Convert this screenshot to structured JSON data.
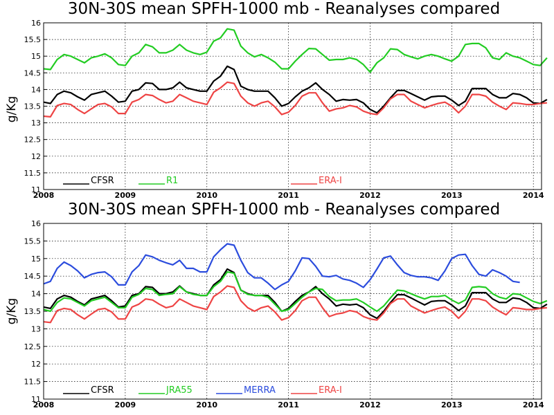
{
  "chart_data": [
    {
      "type": "line",
      "title": "30N-30S mean SPFH-1000 mb - Reanalyses compared",
      "ylabel": "g/Kg",
      "xlabel": "",
      "xlim": [
        2008,
        2014.1
      ],
      "ylim": [
        11,
        16
      ],
      "x_ticks": [
        "2008",
        "2009",
        "2010",
        "2011",
        "2012",
        "2013",
        "2014"
      ],
      "y_ticks": [
        "11",
        "11.5",
        "12",
        "12.5",
        "13",
        "13.5",
        "14",
        "14.5",
        "15",
        "15.5",
        "16"
      ],
      "grid": true,
      "legend_position": "bottom",
      "series": [
        {
          "name": "CFSR",
          "color": "#000000",
          "legend_slot": 0,
          "x_start": 2008,
          "x_step": 0.083333,
          "values": [
            13.62,
            13.58,
            13.85,
            13.95,
            13.9,
            13.78,
            13.68,
            13.85,
            13.9,
            13.95,
            13.8,
            13.62,
            13.65,
            13.95,
            14.0,
            14.2,
            14.18,
            14.0,
            14.0,
            14.05,
            14.22,
            14.05,
            14.0,
            13.95,
            13.95,
            14.25,
            14.4,
            14.7,
            14.6,
            14.1,
            14.0,
            13.95,
            13.95,
            13.95,
            13.75,
            13.5,
            13.58,
            13.78,
            13.95,
            14.05,
            14.2,
            14.0,
            13.85,
            13.65,
            13.7,
            13.68,
            13.7,
            13.6,
            13.4,
            13.3,
            13.5,
            13.75,
            13.97,
            13.97,
            13.88,
            13.78,
            13.68,
            13.78,
            13.8,
            13.8,
            13.68,
            13.52,
            13.65,
            14.03,
            14.03,
            14.03,
            13.85,
            13.75,
            13.75,
            13.88,
            13.85,
            13.75,
            13.6,
            13.58,
            13.7
          ]
        },
        {
          "name": "R1",
          "color": "#22cc22",
          "legend_slot": 1,
          "x_start": 2008,
          "x_step": 0.083333,
          "values": [
            14.62,
            14.6,
            14.9,
            15.05,
            15.0,
            14.9,
            14.8,
            14.95,
            15.0,
            15.07,
            14.95,
            14.75,
            14.72,
            15.0,
            15.1,
            15.35,
            15.28,
            15.1,
            15.1,
            15.18,
            15.35,
            15.18,
            15.1,
            15.05,
            15.12,
            15.45,
            15.55,
            15.82,
            15.78,
            15.3,
            15.1,
            14.98,
            15.05,
            14.95,
            14.82,
            14.62,
            14.62,
            14.85,
            15.05,
            15.23,
            15.22,
            15.05,
            14.88,
            14.9,
            14.9,
            14.95,
            14.9,
            14.75,
            14.52,
            14.8,
            14.95,
            15.22,
            15.2,
            15.05,
            14.98,
            14.92,
            15.0,
            15.05,
            15.0,
            14.92,
            14.85,
            15.0,
            15.35,
            15.38,
            15.38,
            15.25,
            14.95,
            14.9,
            15.1,
            15.0,
            14.95,
            14.85,
            14.75,
            14.72,
            14.95
          ]
        },
        {
          "name": "ERA-I",
          "color": "#ee4444",
          "legend_slot": 3,
          "x_start": 2008,
          "x_step": 0.083333,
          "values": [
            13.2,
            13.18,
            13.52,
            13.58,
            13.55,
            13.4,
            13.28,
            13.42,
            13.55,
            13.58,
            13.48,
            13.28,
            13.28,
            13.62,
            13.7,
            13.85,
            13.82,
            13.7,
            13.6,
            13.65,
            13.85,
            13.75,
            13.65,
            13.6,
            13.55,
            13.92,
            14.05,
            14.22,
            14.18,
            13.8,
            13.6,
            13.5,
            13.6,
            13.65,
            13.48,
            13.25,
            13.32,
            13.52,
            13.8,
            13.9,
            13.9,
            13.6,
            13.35,
            13.42,
            13.45,
            13.52,
            13.48,
            13.35,
            13.28,
            13.25,
            13.45,
            13.72,
            13.85,
            13.85,
            13.65,
            13.55,
            13.45,
            13.52,
            13.58,
            13.62,
            13.5,
            13.3,
            13.5,
            13.85,
            13.85,
            13.8,
            13.62,
            13.5,
            13.4,
            13.6,
            13.58,
            13.55,
            13.55,
            13.58,
            13.6
          ]
        }
      ]
    },
    {
      "type": "line",
      "title": "30N-30S mean SPFH-1000 mb - Reanalyses compared",
      "ylabel": "g/Kg",
      "xlabel": "",
      "xlim": [
        2008,
        2014.1
      ],
      "ylim": [
        11,
        16
      ],
      "x_ticks": [
        "2008",
        "2009",
        "2010",
        "2011",
        "2012",
        "2013",
        "2014"
      ],
      "y_ticks": [
        "11",
        "11.5",
        "12",
        "12.5",
        "13",
        "13.5",
        "14",
        "14.5",
        "15",
        "15.5",
        "16"
      ],
      "grid": true,
      "legend_position": "bottom",
      "series": [
        {
          "name": "CFSR",
          "color": "#000000",
          "legend_slot": 0,
          "x_start": 2008,
          "x_step": 0.083333,
          "values": [
            13.62,
            13.58,
            13.85,
            13.95,
            13.9,
            13.78,
            13.68,
            13.85,
            13.9,
            13.95,
            13.8,
            13.62,
            13.65,
            13.95,
            14.0,
            14.2,
            14.18,
            14.0,
            14.0,
            14.05,
            14.22,
            14.05,
            14.0,
            13.95,
            13.95,
            14.25,
            14.4,
            14.7,
            14.6,
            14.1,
            14.0,
            13.95,
            13.95,
            13.95,
            13.75,
            13.5,
            13.58,
            13.78,
            13.95,
            14.05,
            14.2,
            14.0,
            13.85,
            13.65,
            13.7,
            13.68,
            13.7,
            13.6,
            13.4,
            13.3,
            13.5,
            13.75,
            13.97,
            13.97,
            13.88,
            13.78,
            13.68,
            13.78,
            13.8,
            13.8,
            13.68,
            13.52,
            13.65,
            14.03,
            14.03,
            14.03,
            13.85,
            13.75,
            13.75,
            13.88,
            13.85,
            13.75,
            13.6,
            13.58,
            13.7
          ]
        },
        {
          "name": "JRA55",
          "color": "#22cc22",
          "legend_slot": 1,
          "x_start": 2008,
          "x_step": 0.083333,
          "values": [
            13.55,
            13.5,
            13.75,
            13.88,
            13.85,
            13.75,
            13.65,
            13.8,
            13.85,
            13.9,
            13.75,
            13.6,
            13.6,
            13.9,
            13.98,
            14.15,
            14.12,
            13.95,
            13.98,
            14.0,
            14.2,
            14.05,
            13.98,
            13.95,
            13.95,
            14.2,
            14.35,
            14.62,
            14.58,
            14.1,
            13.98,
            13.95,
            13.95,
            13.9,
            13.7,
            13.5,
            13.55,
            13.72,
            13.9,
            14.05,
            14.15,
            14.12,
            13.92,
            13.8,
            13.82,
            13.82,
            13.85,
            13.75,
            13.62,
            13.5,
            13.65,
            13.88,
            14.1,
            14.08,
            14.0,
            13.92,
            13.85,
            13.92,
            13.92,
            13.95,
            13.82,
            13.72,
            13.82,
            14.18,
            14.2,
            14.18,
            14.0,
            13.9,
            13.85,
            14.0,
            13.98,
            13.88,
            13.78,
            13.72,
            13.8
          ]
        },
        {
          "name": "MERRA",
          "color": "#2b4cdd",
          "legend_slot": 2,
          "x_start": 2008,
          "x_step": 0.083333,
          "values": [
            14.28,
            14.35,
            14.72,
            14.9,
            14.8,
            14.65,
            14.45,
            14.55,
            14.6,
            14.62,
            14.48,
            14.25,
            14.25,
            14.62,
            14.8,
            15.1,
            15.05,
            14.95,
            14.88,
            14.82,
            14.95,
            14.72,
            14.72,
            14.62,
            14.62,
            15.05,
            15.25,
            15.42,
            15.38,
            14.95,
            14.6,
            14.45,
            14.45,
            14.3,
            14.12,
            14.25,
            14.35,
            14.65,
            15.02,
            15.0,
            14.78,
            14.5,
            14.48,
            14.52,
            14.42,
            14.38,
            14.3,
            14.18,
            14.4,
            14.7,
            15.02,
            15.07,
            14.82,
            14.6,
            14.52,
            14.48,
            14.48,
            14.45,
            14.38,
            14.65,
            15.0,
            15.1,
            15.12,
            14.8,
            14.55,
            14.5,
            14.68,
            14.6,
            14.5,
            14.35,
            14.32
          ]
        },
        {
          "name": "ERA-I",
          "color": "#ee4444",
          "legend_slot": 3,
          "x_start": 2008,
          "x_step": 0.083333,
          "values": [
            13.2,
            13.18,
            13.52,
            13.58,
            13.55,
            13.4,
            13.28,
            13.42,
            13.55,
            13.58,
            13.48,
            13.28,
            13.28,
            13.62,
            13.7,
            13.85,
            13.82,
            13.7,
            13.6,
            13.65,
            13.85,
            13.75,
            13.65,
            13.6,
            13.55,
            13.92,
            14.05,
            14.22,
            14.18,
            13.8,
            13.6,
            13.5,
            13.6,
            13.65,
            13.48,
            13.25,
            13.32,
            13.52,
            13.8,
            13.9,
            13.9,
            13.6,
            13.35,
            13.42,
            13.45,
            13.52,
            13.48,
            13.35,
            13.28,
            13.25,
            13.45,
            13.72,
            13.85,
            13.85,
            13.65,
            13.55,
            13.45,
            13.52,
            13.58,
            13.62,
            13.5,
            13.3,
            13.5,
            13.85,
            13.85,
            13.8,
            13.62,
            13.5,
            13.4,
            13.6,
            13.58,
            13.55,
            13.55,
            13.58,
            13.6
          ]
        }
      ]
    }
  ]
}
